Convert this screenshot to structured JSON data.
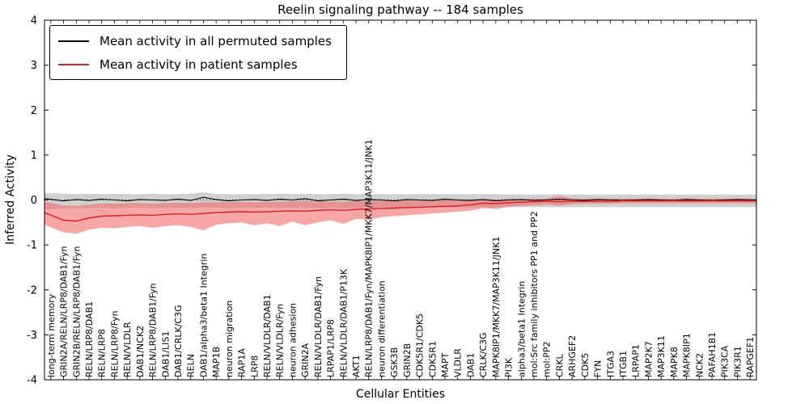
{
  "chart_data": {
    "type": "line",
    "title": "Reelin signaling pathway -- 184 samples",
    "xlabel": "Cellular Entities",
    "ylabel": "Inferred Activity",
    "ylim": [
      -4,
      4
    ],
    "yticks": [
      4,
      3,
      2,
      1,
      0,
      -1,
      -2,
      -3,
      -4
    ],
    "grid": false,
    "legend_position": "upper-left",
    "zero_line_style": "dotted",
    "categories": [
      "long-term memory",
      "GRIN2A/RELN/LRP8/DAB1/Fyn",
      "GRIN2B/RELN/LRP8/DAB1/Fyn",
      "RELN/LRP8/DAB1",
      "RELN/LRP8",
      "RELN/LRP8/Fyn",
      "RELN/VLDLR",
      "DAB1/NCK2",
      "RELN/LRP8/DAB1/Fyn",
      "DAB1/LIS1",
      "DAB1/CRLK/C3G",
      "RELN",
      "DAB1/alpha3/beta1 Integrin",
      "MAP1B",
      "neuron migration",
      "RAP1A",
      "LRP8",
      "RELN/VLDLR/DAB1",
      "RELN/VLDLR/Fyn",
      "neuron adhesion",
      "GRIN2A",
      "RELN/VLDLR/DAB1/Fyn",
      "LRPAP1/LRP8",
      "RELN/VLDLR/DAB1/P13K",
      "AKT1",
      "RELN/LRP8/DAB1/Fyn/MAPK8IP1/MKK7/MAP3K11/JNK1",
      "neuron differentiation",
      "GSK3B",
      "GRIN2B",
      "CDK5R1/CDK5",
      "CDK5R1",
      "MAPT",
      "VLDLR",
      "DAB1",
      "CRLK/C3G",
      "MAPK8IP1/MKK7/MAP3K11/JNK1",
      "PI3K",
      "alpha3/beta1 Integrin",
      "mol:Src family inhibitors PP1 and PP2",
      "mol:PP2",
      "CRKL",
      "ARHGEF2",
      "CDK5",
      "FYN",
      "ITGA3",
      "ITGB1",
      "LRPAP1",
      "MAP2K7",
      "MAP3K11",
      "MAPK8",
      "MAPK8IP1",
      "NCK2",
      "PAFAH1B1",
      "PIK3CA",
      "PIK3R1",
      "RAPGEF1"
    ],
    "series": [
      {
        "name": "Mean activity in all permuted samples",
        "color": "#000000",
        "band_color": "#aaaaaa",
        "band_opacity": 0.55,
        "values": [
          0.03,
          -0.02,
          0.01,
          -0.01,
          0.02,
          0.0,
          -0.02,
          0.01,
          0.0,
          -0.01,
          0.02,
          -0.01,
          0.06,
          0.01,
          -0.02,
          0.0,
          0.01,
          -0.01,
          0.02,
          0.0,
          0.03,
          -0.02,
          0.0,
          0.02,
          -0.01,
          0.01,
          0.0,
          -0.02,
          0.01,
          0.0,
          -0.01,
          0.02,
          0.0,
          -0.01,
          0.01,
          -0.02,
          0.0,
          0.01,
          -0.01,
          0.0,
          0.02,
          0.0,
          -0.01,
          0.01,
          0.0,
          -0.01,
          0.0,
          0.01,
          0.0,
          -0.01,
          0.01,
          0.0,
          -0.01,
          0.0,
          0.01,
          0.0
        ],
        "band_upper": [
          0.16,
          0.14,
          0.13,
          0.14,
          0.13,
          0.14,
          0.13,
          0.13,
          0.14,
          0.13,
          0.13,
          0.14,
          0.17,
          0.13,
          0.13,
          0.13,
          0.13,
          0.13,
          0.14,
          0.13,
          0.14,
          0.13,
          0.13,
          0.14,
          0.13,
          0.13,
          0.13,
          0.13,
          0.13,
          0.13,
          0.13,
          0.13,
          0.13,
          0.13,
          0.13,
          0.13,
          0.12,
          0.12,
          0.12,
          0.12,
          0.13,
          0.12,
          0.12,
          0.12,
          0.12,
          0.12,
          0.12,
          0.12,
          0.12,
          0.12,
          0.12,
          0.12,
          0.12,
          0.12,
          0.12,
          0.12
        ],
        "band_lower": [
          -0.22,
          -0.19,
          -0.18,
          -0.18,
          -0.17,
          -0.18,
          -0.17,
          -0.17,
          -0.18,
          -0.17,
          -0.17,
          -0.18,
          -0.16,
          -0.17,
          -0.18,
          -0.17,
          -0.17,
          -0.17,
          -0.18,
          -0.17,
          -0.17,
          -0.17,
          -0.17,
          -0.18,
          -0.17,
          -0.17,
          -0.17,
          -0.17,
          -0.17,
          -0.17,
          -0.17,
          -0.17,
          -0.17,
          -0.16,
          -0.16,
          -0.17,
          -0.16,
          -0.16,
          -0.16,
          -0.16,
          -0.16,
          -0.16,
          -0.16,
          -0.16,
          -0.16,
          -0.16,
          -0.16,
          -0.16,
          -0.16,
          -0.16,
          -0.16,
          -0.16,
          -0.16,
          -0.16,
          -0.16,
          -0.16
        ]
      },
      {
        "name": "Mean activity in patient samples",
        "color": "#d62222",
        "band_color": "#f26b6b",
        "band_opacity": 0.6,
        "values": [
          -0.28,
          -0.45,
          -0.47,
          -0.4,
          -0.36,
          -0.35,
          -0.34,
          -0.33,
          -0.34,
          -0.32,
          -0.31,
          -0.32,
          -0.3,
          -0.28,
          -0.27,
          -0.26,
          -0.27,
          -0.26,
          -0.25,
          -0.24,
          -0.25,
          -0.23,
          -0.22,
          -0.23,
          -0.21,
          -0.2,
          -0.19,
          -0.18,
          -0.17,
          -0.16,
          -0.15,
          -0.14,
          -0.13,
          -0.11,
          -0.07,
          -0.08,
          -0.06,
          -0.05,
          -0.04,
          -0.03,
          -0.04,
          -0.03,
          -0.03,
          -0.03,
          -0.03,
          -0.02,
          -0.02,
          -0.02,
          -0.02,
          -0.02,
          -0.02,
          -0.02,
          -0.02,
          -0.02,
          -0.02,
          -0.02
        ],
        "band_upper": [
          -0.04,
          -0.12,
          -0.13,
          -0.1,
          -0.08,
          -0.08,
          -0.07,
          -0.07,
          -0.08,
          -0.07,
          -0.06,
          -0.07,
          -0.05,
          -0.05,
          -0.05,
          -0.04,
          -0.05,
          -0.04,
          -0.04,
          -0.03,
          -0.02,
          -0.03,
          -0.03,
          -0.04,
          -0.02,
          -0.02,
          -0.02,
          -0.01,
          -0.01,
          -0.01,
          0.0,
          0.0,
          0.0,
          0.01,
          0.02,
          0.01,
          0.02,
          0.02,
          0.03,
          0.03,
          0.09,
          0.04,
          0.03,
          0.03,
          0.03,
          0.03,
          0.03,
          0.03,
          0.03,
          0.03,
          0.03,
          0.03,
          0.03,
          0.03,
          0.03,
          0.03
        ],
        "band_lower": [
          -0.55,
          -0.72,
          -0.75,
          -0.66,
          -0.62,
          -0.63,
          -0.6,
          -0.58,
          -0.62,
          -0.58,
          -0.56,
          -0.6,
          -0.68,
          -0.55,
          -0.52,
          -0.5,
          -0.56,
          -0.52,
          -0.58,
          -0.48,
          -0.56,
          -0.5,
          -0.45,
          -0.53,
          -0.42,
          -0.44,
          -0.38,
          -0.36,
          -0.34,
          -0.32,
          -0.3,
          -0.28,
          -0.26,
          -0.24,
          -0.18,
          -0.2,
          -0.15,
          -0.13,
          -0.12,
          -0.1,
          -0.13,
          -0.09,
          -0.08,
          -0.08,
          -0.08,
          -0.07,
          -0.07,
          -0.07,
          -0.07,
          -0.07,
          -0.07,
          -0.07,
          -0.07,
          -0.07,
          -0.07,
          -0.07
        ]
      }
    ]
  }
}
